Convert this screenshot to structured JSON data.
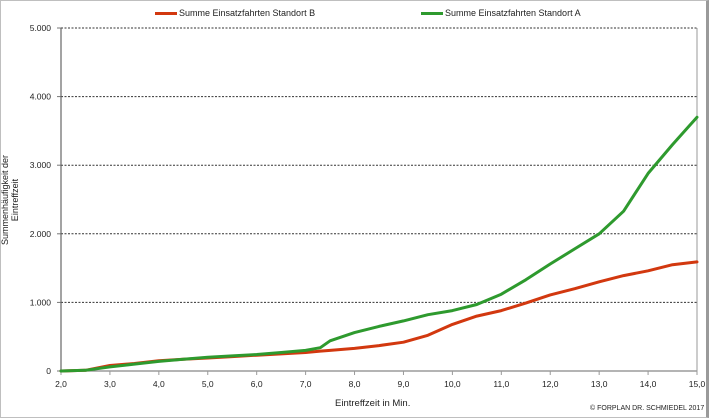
{
  "chart_data": {
    "type": "line",
    "title": "",
    "xlabel": "Eintreffzeit in Min.",
    "ylabel": "Summenhäufigkeit der Eintreffzeit",
    "xlim": [
      2.0,
      15.0
    ],
    "ylim": [
      0,
      5000
    ],
    "x_ticks": [
      "2,0",
      "3,0",
      "4,0",
      "5,0",
      "6,0",
      "7,0",
      "8,0",
      "9,0",
      "10,0",
      "11,0",
      "12,0",
      "13,0",
      "14,0",
      "15,0"
    ],
    "y_ticks": [
      "0",
      "1.000",
      "2.000",
      "3.000",
      "4.000",
      "5.000"
    ],
    "grid": "horizontal dotted",
    "legend_position": "top",
    "x": [
      2.0,
      2.5,
      3.0,
      3.5,
      4.0,
      4.5,
      5.0,
      5.5,
      6.0,
      6.5,
      7.0,
      7.3,
      7.5,
      8.0,
      8.5,
      9.0,
      9.5,
      10.0,
      10.5,
      11.0,
      11.5,
      12.0,
      12.5,
      13.0,
      13.5,
      14.0,
      14.5,
      15.0
    ],
    "series": [
      {
        "name": "Summe Einsatzfahrten  Standort B",
        "color": "#d2380f",
        "values": [
          0,
          10,
          80,
          110,
          150,
          170,
          190,
          210,
          230,
          250,
          270,
          290,
          300,
          330,
          370,
          420,
          520,
          680,
          800,
          880,
          990,
          1110,
          1200,
          1300,
          1390,
          1460,
          1550,
          1590
        ]
      },
      {
        "name": "Summe Einsatzfahrten  Standort A",
        "color": "#2e9a2e",
        "values": [
          0,
          10,
          60,
          100,
          140,
          170,
          200,
          220,
          240,
          270,
          300,
          340,
          440,
          560,
          650,
          730,
          820,
          880,
          970,
          1120,
          1330,
          1560,
          1780,
          2000,
          2330,
          2880,
          3300,
          3700
        ]
      }
    ]
  },
  "legend": {
    "b_label": "Summe Einsatzfahrten  Standort B",
    "a_label": "Summe Einsatzfahrten  Standort A"
  },
  "axes": {
    "xlabel": "Eintreffzeit in Min.",
    "ylabel": "Summenhäufigkeit der Eintreffzeit"
  },
  "credit": "© FORPLAN DR. SCHMIEDEL 2017"
}
